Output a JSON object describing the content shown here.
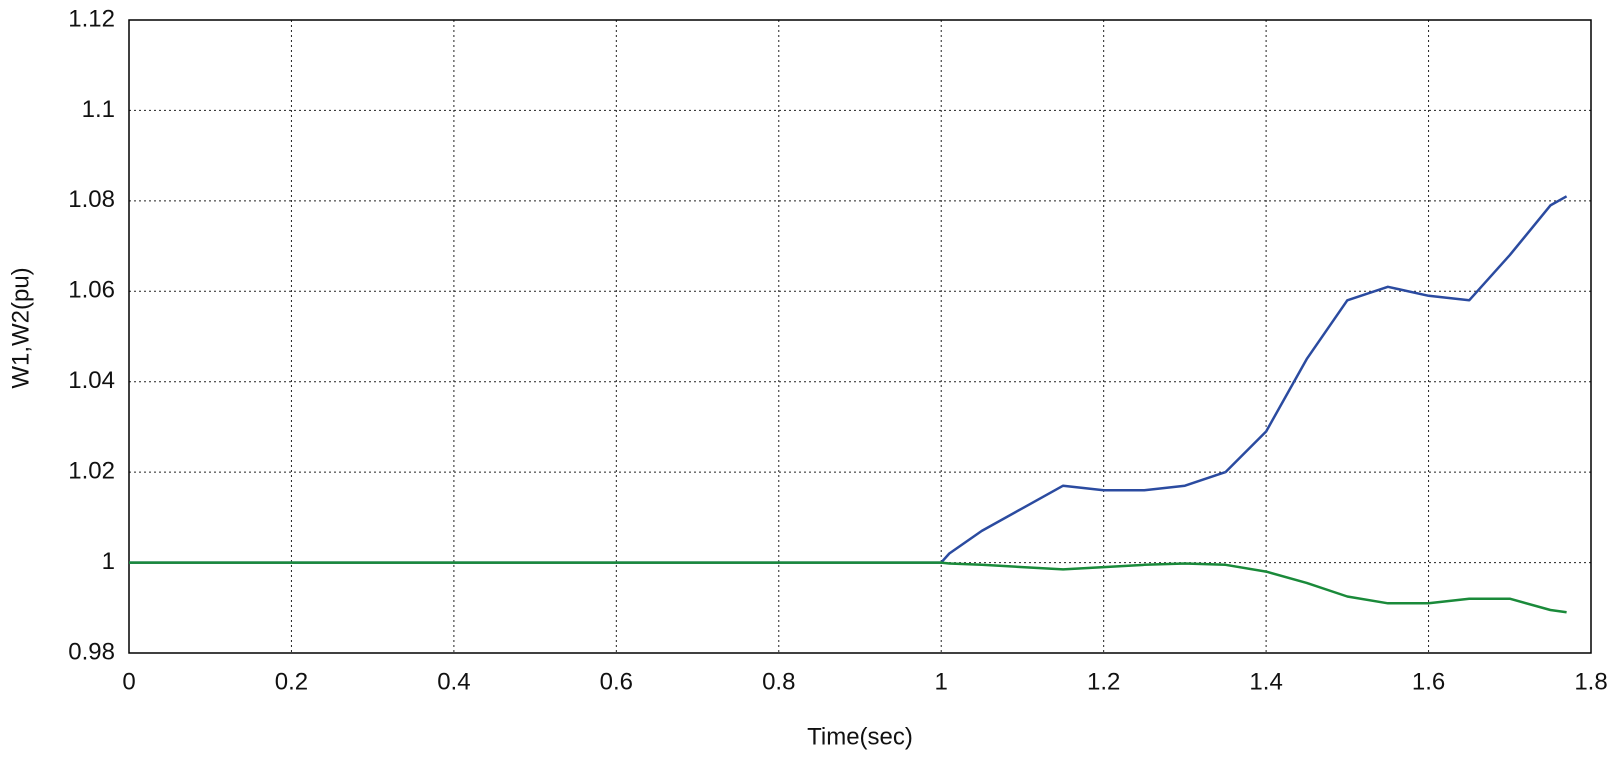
{
  "chart_data": {
    "type": "line",
    "xlabel": "Time(sec)",
    "ylabel": "W1,W2(pu)",
    "x": [
      0,
      1.0,
      1.01,
      1.05,
      1.1,
      1.15,
      1.2,
      1.25,
      1.3,
      1.35,
      1.4,
      1.45,
      1.5,
      1.55,
      1.6,
      1.65,
      1.7,
      1.75,
      1.77
    ],
    "series": [
      {
        "color": "#2b4ba0",
        "values": [
          1,
          1,
          1.002,
          1.007,
          1.012,
          1.017,
          1.016,
          1.016,
          1.017,
          1.02,
          1.029,
          1.045,
          1.058,
          1.061,
          1.059,
          1.058,
          1.068,
          1.079,
          1.081
        ]
      },
      {
        "color": "#1a8a3a",
        "values": [
          1,
          1,
          0.9998,
          0.9995,
          0.999,
          0.9985,
          0.999,
          0.9995,
          0.9998,
          0.9995,
          0.998,
          0.9955,
          0.9925,
          0.991,
          0.991,
          0.992,
          0.992,
          0.9895,
          0.989
        ]
      }
    ],
    "xlim": [
      0,
      1.8
    ],
    "xticks": [
      0,
      0.2,
      0.4,
      0.6,
      0.8,
      1,
      1.2,
      1.4,
      1.6,
      1.8
    ],
    "ylim": [
      0.98,
      1.12
    ],
    "yticks": [
      0.98,
      1,
      1.02,
      1.04,
      1.06,
      1.08,
      1.1,
      1.12
    ],
    "grid": true
  }
}
